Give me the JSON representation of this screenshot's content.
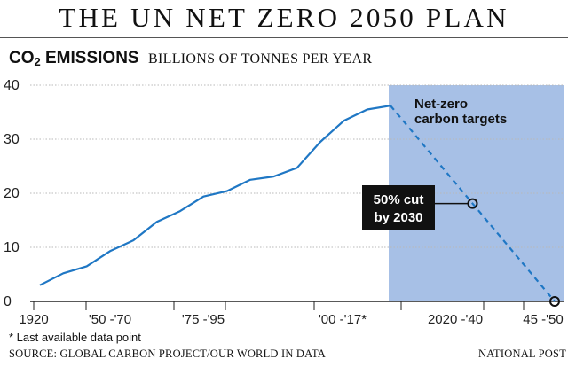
{
  "header": {
    "title": "THE UN NET ZERO 2050 PLAN",
    "co2_label": "CO",
    "co2_subscript": "2",
    "co2_label_suffix": " EMISSIONS",
    "unit_label": "BILLIONS OF TONNES PER YEAR"
  },
  "chart_data": {
    "type": "line",
    "ylim": [
      0,
      40
    ],
    "yticks": [
      0,
      10,
      20,
      30,
      40
    ],
    "x_tick_labels": [
      "1920",
      "'50 -'70",
      "'75 -'95",
      "'00 -'17*",
      "2020 -'40",
      "45 -'50"
    ],
    "historical_values": [
      3,
      5.2,
      6.5,
      9.3,
      11.3,
      14.7,
      16.7,
      19.4,
      20.4,
      22.5,
      23.1,
      24.7,
      29.5,
      33.4,
      35.5,
      36.2
    ],
    "projection": {
      "start_value": 36.2,
      "value_2030": 18.1,
      "end_value": 0
    },
    "shaded_region_label_line1": "Net-zero",
    "shaded_region_label_line2": "carbon targets",
    "annotation_line1": "50% cut",
    "annotation_line2": "by 2030",
    "colors": {
      "line": "#1f77c4",
      "shade": "#a7c0e6",
      "grid": "#b8b8b8",
      "axis": "#222222",
      "annotation_bg": "#111111"
    }
  },
  "footer": {
    "footnote": "* Last available data point",
    "source": "SOURCE: GLOBAL CARBON PROJECT/OUR WORLD IN DATA",
    "credit": "NATIONAL POST"
  }
}
